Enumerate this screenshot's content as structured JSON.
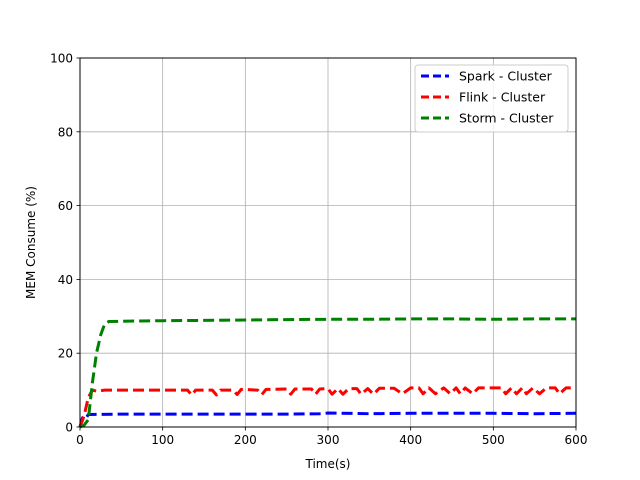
{
  "chart_data": {
    "type": "line",
    "xlabel": "Time(s)",
    "ylabel": "MEM Consume (%)",
    "xlim": [
      0,
      600
    ],
    "ylim": [
      0,
      100
    ],
    "xticks": [
      0,
      100,
      200,
      300,
      400,
      500,
      600
    ],
    "yticks": [
      0,
      20,
      40,
      60,
      80,
      100
    ],
    "grid": true,
    "legend_position": "top-right",
    "series": [
      {
        "name": "Spark - Cluster",
        "color": "#0000ff",
        "style": "dashed",
        "points": [
          [
            0,
            0
          ],
          [
            3,
            2.5
          ],
          [
            6,
            2
          ],
          [
            10,
            3.4
          ],
          [
            50,
            3.5
          ],
          [
            100,
            3.5
          ],
          [
            150,
            3.5
          ],
          [
            200,
            3.5
          ],
          [
            250,
            3.5
          ],
          [
            290,
            3.6
          ],
          [
            300,
            3.8
          ],
          [
            350,
            3.6
          ],
          [
            400,
            3.7
          ],
          [
            450,
            3.7
          ],
          [
            500,
            3.7
          ],
          [
            550,
            3.6
          ],
          [
            600,
            3.7
          ]
        ]
      },
      {
        "name": "Flink - Cluster",
        "color": "#ff0000",
        "style": "dashed",
        "points": [
          [
            0,
            0
          ],
          [
            5,
            3
          ],
          [
            10,
            8
          ],
          [
            15,
            10
          ],
          [
            20,
            9.7
          ],
          [
            30,
            10
          ],
          [
            60,
            10
          ],
          [
            100,
            10
          ],
          [
            130,
            10
          ],
          [
            135,
            8.7
          ],
          [
            140,
            10
          ],
          [
            160,
            10
          ],
          [
            165,
            8.7
          ],
          [
            170,
            10
          ],
          [
            185,
            10
          ],
          [
            190,
            8.8
          ],
          [
            195,
            10.2
          ],
          [
            215,
            10
          ],
          [
            220,
            8.8
          ],
          [
            225,
            10.2
          ],
          [
            250,
            10.3
          ],
          [
            255,
            8.9
          ],
          [
            260,
            10.3
          ],
          [
            280,
            10.3
          ],
          [
            285,
            8.9
          ],
          [
            290,
            10.3
          ],
          [
            300,
            10.4
          ],
          [
            305,
            8.9
          ],
          [
            312,
            10.4
          ],
          [
            318,
            8.9
          ],
          [
            325,
            10.4
          ],
          [
            335,
            10.4
          ],
          [
            340,
            8.9
          ],
          [
            348,
            10.4
          ],
          [
            355,
            8.9
          ],
          [
            362,
            10.5
          ],
          [
            380,
            10.5
          ],
          [
            390,
            9
          ],
          [
            400,
            10.6
          ],
          [
            410,
            10.6
          ],
          [
            415,
            9
          ],
          [
            422,
            10.6
          ],
          [
            430,
            9
          ],
          [
            440,
            10.6
          ],
          [
            448,
            9
          ],
          [
            455,
            10.6
          ],
          [
            460,
            9
          ],
          [
            466,
            10.6
          ],
          [
            475,
            9
          ],
          [
            482,
            10.6
          ],
          [
            500,
            10.6
          ],
          [
            510,
            10.6
          ],
          [
            515,
            9
          ],
          [
            522,
            10.6
          ],
          [
            528,
            9
          ],
          [
            535,
            10.6
          ],
          [
            540,
            9
          ],
          [
            548,
            10.6
          ],
          [
            556,
            9
          ],
          [
            564,
            10.6
          ],
          [
            575,
            10.6
          ],
          [
            580,
            9
          ],
          [
            588,
            10.6
          ],
          [
            600,
            10.6
          ]
        ]
      },
      {
        "name": "Storm - Cluster",
        "color": "#008000",
        "style": "dashed",
        "points": [
          [
            0,
            0
          ],
          [
            5,
            0.5
          ],
          [
            10,
            2
          ],
          [
            15,
            12
          ],
          [
            20,
            20
          ],
          [
            25,
            25
          ],
          [
            30,
            28
          ],
          [
            35,
            28.6
          ],
          [
            60,
            28.7
          ],
          [
            100,
            28.8
          ],
          [
            150,
            28.9
          ],
          [
            200,
            29
          ],
          [
            250,
            29.1
          ],
          [
            300,
            29.2
          ],
          [
            350,
            29.2
          ],
          [
            400,
            29.3
          ],
          [
            450,
            29.3
          ],
          [
            500,
            29.2
          ],
          [
            550,
            29.3
          ],
          [
            600,
            29.3
          ]
        ]
      }
    ]
  }
}
